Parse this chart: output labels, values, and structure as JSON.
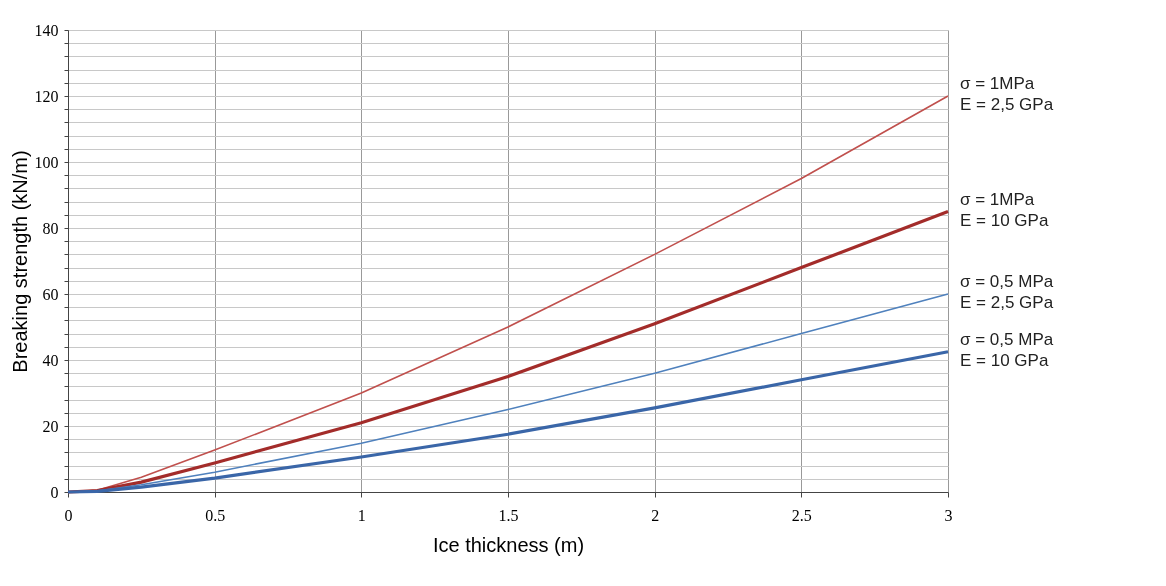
{
  "chart_data": {
    "type": "line",
    "xlabel": "Ice thickness (m)",
    "ylabel": "Breaking strength (kN/m)",
    "x": [
      0,
      0.1,
      0.25,
      0.5,
      1,
      1.5,
      2,
      2.5,
      3
    ],
    "series": [
      {
        "name": "σ = 1MPa\nE = 2,5 GPa",
        "color": "#c0504d",
        "values": [
          0,
          0.5,
          4.5,
          12.7,
          30,
          50,
          72,
          95,
          120
        ]
      },
      {
        "name": "σ = 1MPa\nE = 10 GPa",
        "color": "#a32c2a",
        "values": [
          0,
          0.4,
          3,
          8.8,
          21,
          35,
          51,
          68,
          85
        ]
      },
      {
        "name": "σ = 0,5 MPa\nE = 2,5 GPa",
        "color": "#4f81bd",
        "values": [
          0,
          0.3,
          2.2,
          6,
          14.8,
          25,
          36,
          48,
          60
        ]
      },
      {
        "name": "σ = 0,5 MPa\nE = 10 GPa",
        "color": "#3a66a8",
        "values": [
          0,
          0.2,
          1.5,
          4.2,
          10.6,
          17.5,
          25.5,
          34,
          42.5
        ]
      }
    ],
    "xlim": [
      0,
      3
    ],
    "xticks": [
      0,
      0.5,
      1,
      1.5,
      2,
      2.5,
      3
    ],
    "ylim": [
      0,
      140
    ],
    "yticks": [
      0,
      {
        "value": 4,
        "label": null
      },
      {
        "value": 8,
        "label": null
      },
      {
        "value": 12,
        "label": null
      },
      {
        "value": 16,
        "label": null
      },
      20,
      {
        "value": 24,
        "label": null
      },
      {
        "value": 28,
        "label": null
      },
      {
        "value": 32,
        "label": null
      },
      {
        "value": 36,
        "label": null
      },
      40,
      {
        "value": 44,
        "label": null
      },
      {
        "value": 48,
        "label": null
      },
      {
        "value": 52,
        "label": null
      },
      {
        "value": 56,
        "label": null
      },
      60,
      {
        "value": 64,
        "label": null
      },
      {
        "value": 68,
        "label": null
      },
      {
        "value": 72,
        "label": null
      },
      {
        "value": 76,
        "label": null
      },
      80,
      {
        "value": 84,
        "label": null
      },
      {
        "value": 88,
        "label": null
      },
      {
        "value": 92,
        "label": null
      },
      {
        "value": 96,
        "label": null
      },
      100,
      {
        "value": 104,
        "label": null
      },
      {
        "value": 108,
        "label": null
      },
      {
        "value": 112,
        "label": null
      },
      {
        "value": 116,
        "label": null
      },
      120,
      {
        "value": 124,
        "label": null
      },
      {
        "value": 128,
        "label": null
      },
      {
        "value": 132,
        "label": null
      },
      {
        "value": 136,
        "label": null
      },
      140
    ],
    "grid": true,
    "legend": false,
    "marker": "none",
    "line_style": "solid"
  }
}
